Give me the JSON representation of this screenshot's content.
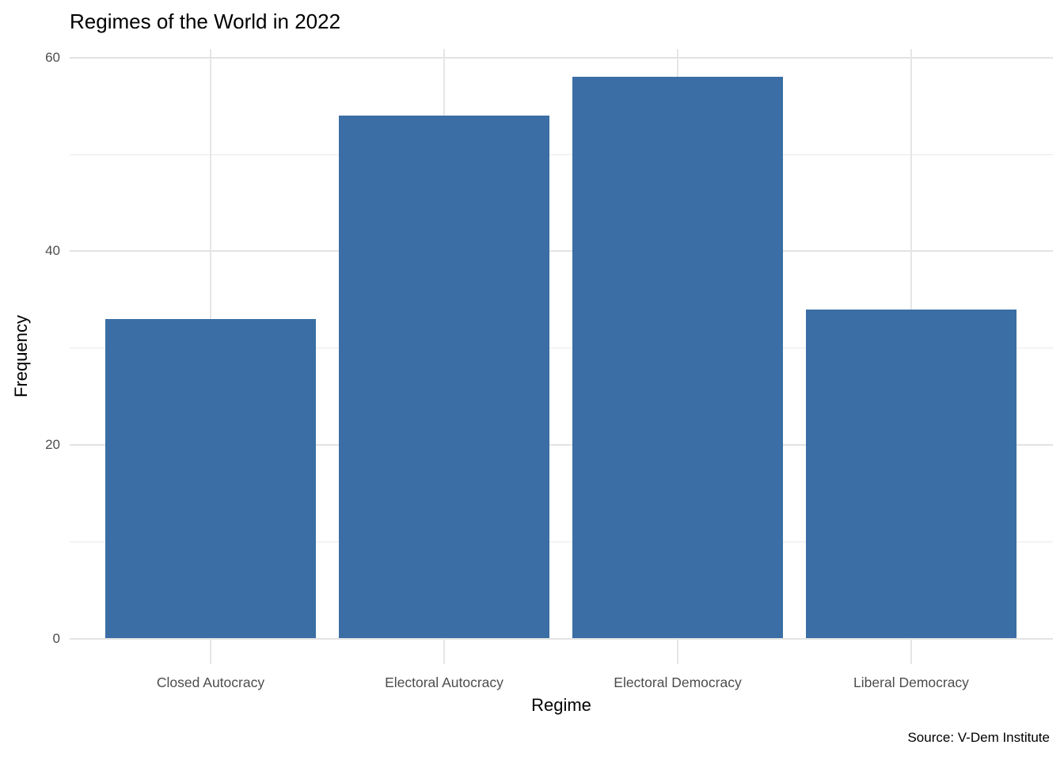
{
  "chart_data": {
    "type": "bar",
    "title": "Regimes of the World in 2022",
    "xlabel": "Regime",
    "ylabel": "Frequency",
    "caption": "Source: V-Dem Institute",
    "categories": [
      "Closed Autocracy",
      "Electoral Autocracy",
      "Electoral Democracy",
      "Liberal Democracy"
    ],
    "values": [
      33,
      54,
      58,
      34
    ],
    "ylim": [
      0,
      60
    ],
    "yticks_major": [
      0,
      20,
      40,
      60
    ],
    "yticks_minor": [
      10,
      30,
      50
    ],
    "legend": "none",
    "grid": "horizontal major and minor lines, vertical major lines at bar centers, light gray on white",
    "bar_color": "#3a6ea5",
    "tick_label_color": "#4d4d4d",
    "text_color": "#000000",
    "gridline_color": "#e3e3e3"
  }
}
